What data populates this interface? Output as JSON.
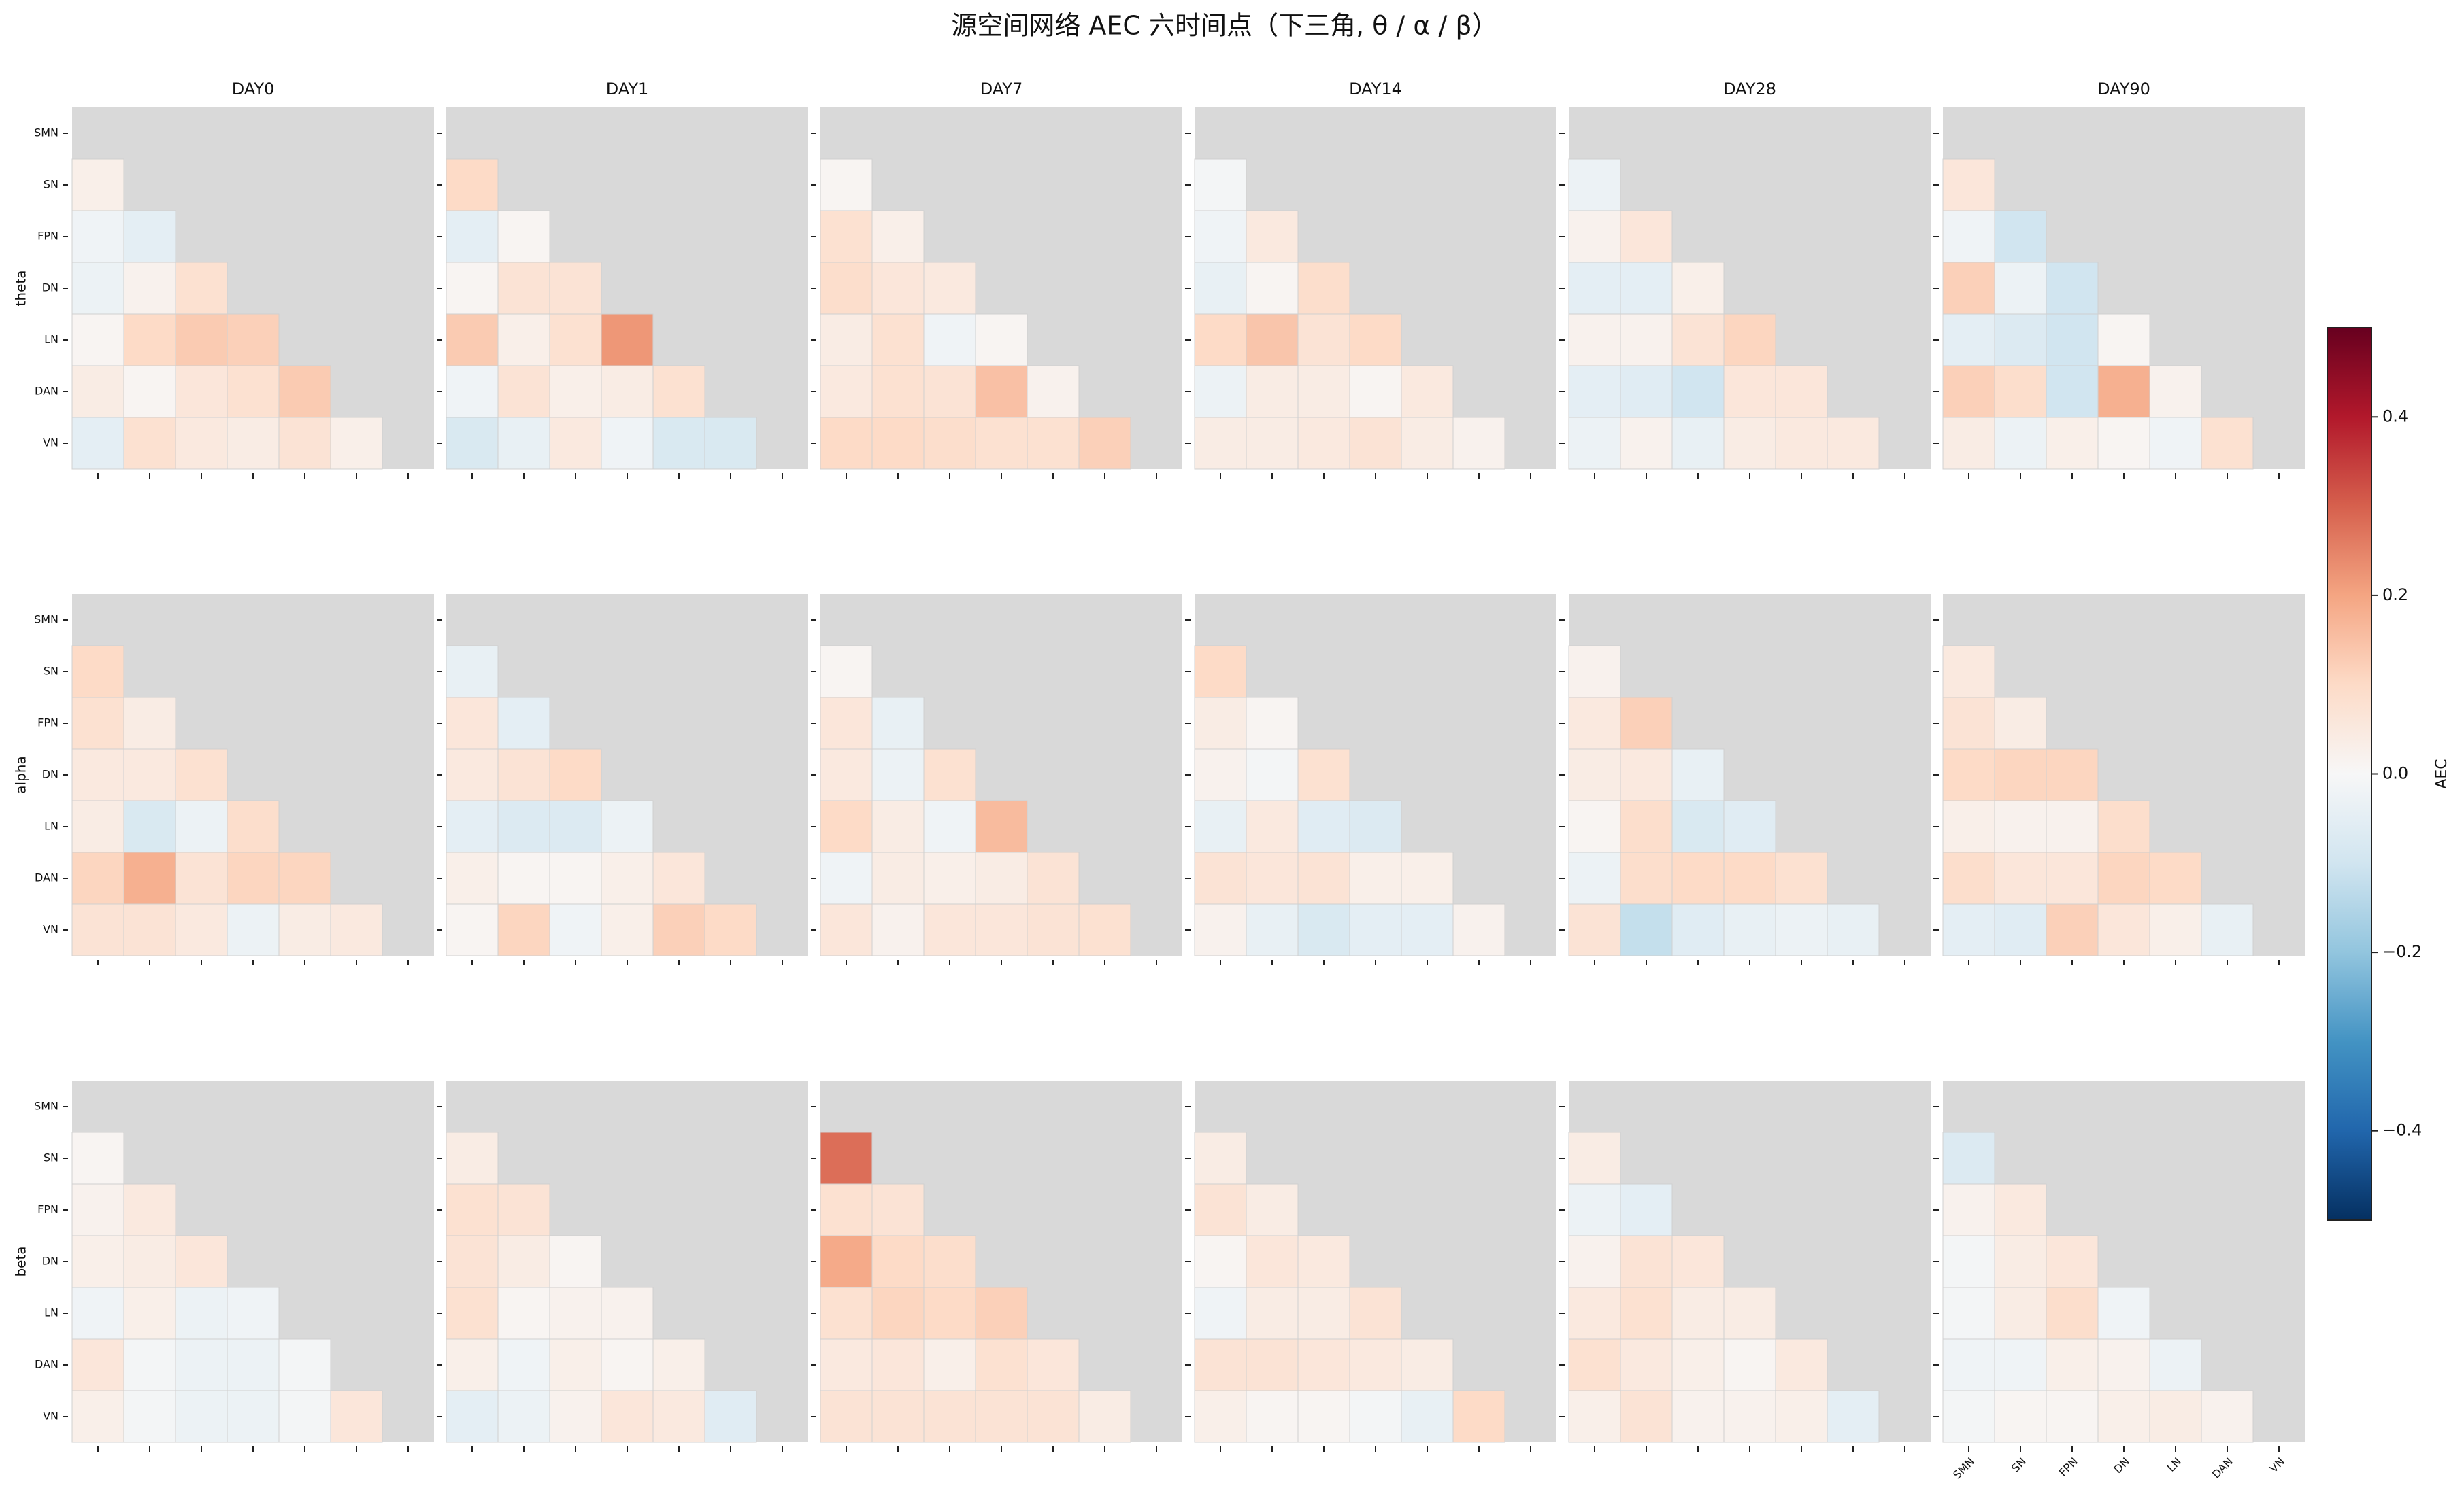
{
  "chart_data": {
    "type": "heatmap",
    "title": "源空间网络 AEC 六时间点（下三角, θ / α / β）",
    "columns": [
      "DAY0",
      "DAY1",
      "DAY7",
      "DAY14",
      "DAY28",
      "DAY90"
    ],
    "rows": [
      "theta",
      "alpha",
      "beta"
    ],
    "labels": [
      "SMN",
      "SN",
      "FPN",
      "DN",
      "LN",
      "DAN",
      "VN"
    ],
    "colormap": "RdBu_r",
    "mask_color": "#d9d9d9",
    "colorbar": {
      "label": "AEC",
      "lim": [
        -0.5,
        0.5
      ],
      "ticks": [
        {
          "value": -0.4,
          "label": "−0.4"
        },
        {
          "value": -0.2,
          "label": "−0.2"
        },
        {
          "value": 0,
          "label": "0.0"
        },
        0.2,
        0.4
      ]
    },
    "panels": [
      [
        [
          [
            0.03
          ],
          [
            -0.02,
            -0.05
          ],
          [
            -0.03,
            0.02,
            0.08
          ],
          [
            0.01,
            0.1,
            0.13,
            0.12
          ],
          [
            0.04,
            0.01,
            0.06,
            0.08,
            0.13
          ],
          [
            -0.05,
            0.08,
            0.05,
            0.04,
            0.07,
            0.03
          ]
        ],
        [
          [
            0.1
          ],
          [
            -0.05,
            0.01
          ],
          [
            0.01,
            0.07,
            0.07
          ],
          [
            0.13,
            0.03,
            0.08,
            0.22
          ],
          [
            -0.02,
            0.07,
            0.03,
            0.04,
            0.08
          ],
          [
            -0.08,
            -0.04,
            0.05,
            -0.02,
            -0.08,
            -0.08
          ]
        ],
        [
          [
            0.01
          ],
          [
            0.08,
            0.03
          ],
          [
            0.09,
            0.06,
            0.05
          ],
          [
            0.04,
            0.08,
            -0.02,
            0.01
          ],
          [
            0.05,
            0.08,
            0.07,
            0.15,
            0.02
          ],
          [
            0.1,
            0.1,
            0.09,
            0.08,
            0.08,
            0.12
          ]
        ],
        [
          [
            -0.01
          ],
          [
            -0.02,
            0.05
          ],
          [
            -0.04,
            0.01,
            0.09
          ],
          [
            0.1,
            0.14,
            0.07,
            0.1
          ],
          [
            -0.03,
            0.04,
            0.04,
            0.01,
            0.05
          ],
          [
            0.04,
            0.04,
            0.05,
            0.07,
            0.04,
            0.02
          ]
        ],
        [
          [
            -0.03
          ],
          [
            0.02,
            0.06
          ],
          [
            -0.05,
            -0.05,
            0.03
          ],
          [
            0.02,
            0.02,
            0.07,
            0.11
          ],
          [
            -0.05,
            -0.06,
            -0.1,
            0.06,
            0.06
          ],
          [
            -0.03,
            0.02,
            -0.04,
            0.04,
            0.05,
            0.05
          ]
        ],
        [
          [
            0.06
          ],
          [
            -0.02,
            -0.1
          ],
          [
            0.12,
            -0.03,
            -0.1
          ],
          [
            -0.05,
            -0.07,
            -0.1,
            0.01
          ],
          [
            0.12,
            0.09,
            -0.1,
            0.18,
            0.02
          ],
          [
            0.04,
            -0.03,
            0.03,
            0.01,
            -0.02,
            0.08
          ]
        ]
      ],
      [
        [
          [
            0.1
          ],
          [
            0.08,
            0.04
          ],
          [
            0.05,
            0.05,
            0.08
          ],
          [
            0.04,
            -0.08,
            -0.03,
            0.09
          ],
          [
            0.11,
            0.18,
            0.07,
            0.11,
            0.11
          ],
          [
            0.07,
            0.07,
            0.05,
            -0.03,
            0.04,
            0.05
          ]
        ],
        [
          [
            -0.04
          ],
          [
            0.06,
            -0.05
          ],
          [
            0.05,
            0.07,
            0.1
          ],
          [
            -0.05,
            -0.07,
            -0.07,
            -0.03
          ],
          [
            0.03,
            0.01,
            0.01,
            0.03,
            0.06
          ],
          [
            0.01,
            0.11,
            -0.02,
            0.03,
            0.12,
            0.1
          ]
        ],
        [
          [
            0.01
          ],
          [
            0.06,
            -0.04
          ],
          [
            0.05,
            -0.03,
            0.08
          ],
          [
            0.1,
            0.04,
            -0.02,
            0.16
          ],
          [
            -0.02,
            0.04,
            0.03,
            0.04,
            0.07
          ],
          [
            0.06,
            0.02,
            0.06,
            0.06,
            0.07,
            0.08
          ]
        ],
        [
          [
            0.1
          ],
          [
            0.04,
            0.01
          ],
          [
            0.02,
            -0.01,
            0.08
          ],
          [
            -0.04,
            0.05,
            -0.06,
            -0.07
          ],
          [
            0.07,
            0.06,
            0.07,
            0.03,
            0.03
          ],
          [
            0.02,
            -0.04,
            -0.08,
            -0.05,
            -0.05,
            0.02
          ]
        ],
        [
          [
            0.02
          ],
          [
            0.05,
            0.12
          ],
          [
            0.04,
            0.05,
            -0.04
          ],
          [
            0.01,
            0.09,
            -0.08,
            -0.06
          ],
          [
            -0.03,
            0.09,
            0.1,
            0.1,
            0.08
          ],
          [
            0.07,
            -0.12,
            -0.06,
            -0.04,
            -0.03,
            -0.04
          ]
        ],
        [
          [
            0.05
          ],
          [
            0.07,
            0.04
          ],
          [
            0.1,
            0.11,
            0.11
          ],
          [
            0.03,
            0.02,
            0.02,
            0.09
          ],
          [
            0.09,
            0.06,
            0.06,
            0.11,
            0.1
          ],
          [
            -0.05,
            -0.06,
            0.12,
            0.06,
            0.03,
            -0.04
          ]
        ]
      ],
      [
        [
          [
            0.01
          ],
          [
            0.02,
            0.05
          ],
          [
            0.03,
            0.04,
            0.06
          ],
          [
            -0.02,
            0.03,
            -0.03,
            -0.02
          ],
          [
            0.06,
            -0.01,
            -0.03,
            -0.03,
            -0.01
          ],
          [
            0.03,
            -0.01,
            -0.03,
            -0.03,
            -0.01,
            0.06
          ]
        ],
        [
          [
            0.04
          ],
          [
            0.08,
            0.07
          ],
          [
            0.07,
            0.04,
            0.01
          ],
          [
            0.08,
            0.01,
            0.02,
            0.02
          ],
          [
            0.03,
            -0.02,
            0.03,
            0.01,
            0.03
          ],
          [
            -0.05,
            -0.03,
            0.02,
            0.06,
            0.05,
            -0.06
          ]
        ],
        [
          [
            0.28
          ],
          [
            0.08,
            0.07
          ],
          [
            0.19,
            0.1,
            0.09
          ],
          [
            0.08,
            0.11,
            0.1,
            0.12
          ],
          [
            0.05,
            0.06,
            0.03,
            0.08,
            0.06
          ],
          [
            0.07,
            0.07,
            0.07,
            0.07,
            0.07,
            0.04
          ]
        ],
        [
          [
            0.04
          ],
          [
            0.07,
            0.04
          ],
          [
            0.01,
            0.06,
            0.05
          ],
          [
            -0.02,
            0.04,
            0.04,
            0.07
          ],
          [
            0.07,
            0.07,
            0.06,
            0.05,
            0.04
          ],
          [
            0.03,
            0.01,
            0.01,
            -0.01,
            -0.04,
            0.1
          ]
        ],
        [
          [
            0.04
          ],
          [
            -0.03,
            -0.05
          ],
          [
            0.02,
            0.07,
            0.06
          ],
          [
            0.05,
            0.08,
            0.04,
            0.04
          ],
          [
            0.08,
            0.05,
            0.03,
            0.01,
            0.05
          ],
          [
            0.03,
            0.07,
            0.02,
            0.02,
            0.03,
            -0.05
          ]
        ],
        [
          [
            -0.07
          ],
          [
            0.02,
            0.05
          ],
          [
            -0.01,
            0.04,
            0.06
          ],
          [
            -0.01,
            0.04,
            0.09,
            -0.02
          ],
          [
            -0.02,
            -0.02,
            0.03,
            0.02,
            -0.03
          ],
          [
            -0.01,
            0.01,
            0.01,
            0.03,
            0.04,
            0.02
          ]
        ]
      ]
    ]
  }
}
